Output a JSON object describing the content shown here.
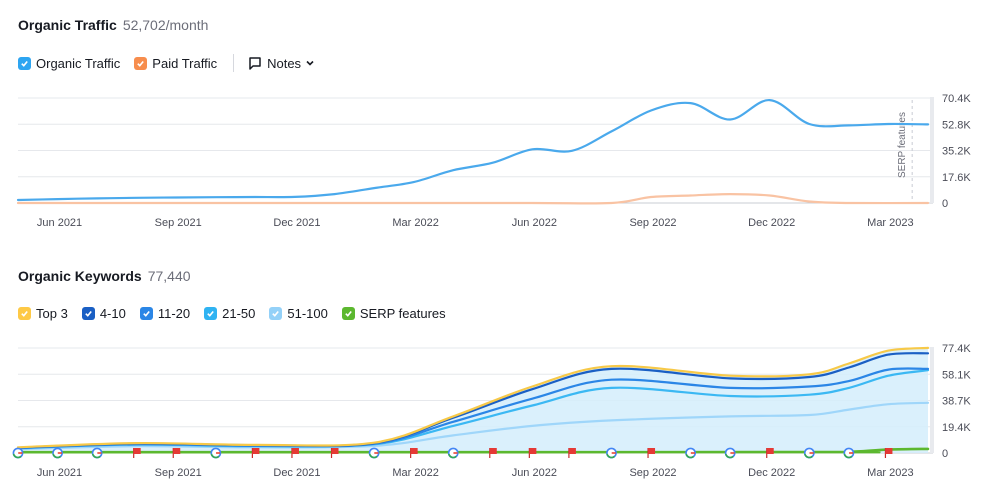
{
  "traffic": {
    "title": "Organic Traffic",
    "value": "52,702/month",
    "legend": [
      {
        "label": "Organic Traffic",
        "color": "#2ea5f1"
      },
      {
        "label": "Paid Traffic",
        "color": "#f78d4d"
      }
    ],
    "notes_label": "Notes"
  },
  "keywords": {
    "title": "Organic Keywords",
    "value": "77,440",
    "legend": [
      {
        "label": "Top 3",
        "color": "#fec946"
      },
      {
        "label": "4-10",
        "color": "#1a5fc4"
      },
      {
        "label": "11-20",
        "color": "#2b86e6"
      },
      {
        "label": "21-50",
        "color": "#2fb3f2"
      },
      {
        "label": "51-100",
        "color": "#94d1f8"
      },
      {
        "label": "SERP features",
        "color": "#5cb82f"
      }
    ]
  },
  "chart_data": [
    {
      "type": "line",
      "title": "Organic Traffic",
      "x_labels": [
        "Jun 2021",
        "Sep 2021",
        "Dec 2021",
        "Mar 2022",
        "Jun 2022",
        "Sep 2022",
        "Dec 2022",
        "Mar 2023"
      ],
      "x_range": [
        "May 2021",
        "May 2023"
      ],
      "y_ticks": [
        "70.4K",
        "52.8K",
        "35.2K",
        "17.6K",
        "0"
      ],
      "ylim": [
        0,
        70400
      ],
      "grid": true,
      "annotation": "SERP features",
      "series": [
        {
          "name": "Organic Traffic",
          "color": "#4aa9ec",
          "points": [
            [
              0,
              2000
            ],
            [
              1,
              2600
            ],
            [
              2,
              3100
            ],
            [
              3,
              3500
            ],
            [
              4,
              3700
            ],
            [
              5,
              3900
            ],
            [
              6,
              4000
            ],
            [
              7,
              4100
            ],
            [
              8,
              6000
            ],
            [
              9,
              10000
            ],
            [
              10,
              14000
            ],
            [
              11,
              22000
            ],
            [
              12,
              27000
            ],
            [
              13,
              36000
            ],
            [
              14,
              35000
            ],
            [
              15,
              48000
            ],
            [
              16,
              62000
            ],
            [
              17,
              67000
            ],
            [
              18,
              56000
            ],
            [
              19,
              69000
            ],
            [
              20,
              53000
            ],
            [
              21,
              52000
            ],
            [
              22,
              53000
            ],
            [
              23,
              52702
            ]
          ]
        },
        {
          "name": "Paid Traffic",
          "color": "#f9c3a3",
          "points": [
            [
              0,
              0
            ],
            [
              5,
              0
            ],
            [
              9,
              0
            ],
            [
              13,
              0
            ],
            [
              15,
              0
            ],
            [
              16,
              4000
            ],
            [
              17,
              5000
            ],
            [
              18,
              6000
            ],
            [
              19,
              5000
            ],
            [
              20,
              1000
            ],
            [
              21,
              0
            ],
            [
              23,
              0
            ]
          ]
        }
      ]
    },
    {
      "type": "area",
      "title": "Organic Keywords",
      "x_labels": [
        "Jun 2021",
        "Sep 2021",
        "Dec 2021",
        "Mar 2022",
        "Jun 2022",
        "Sep 2022",
        "Dec 2022",
        "Mar 2023"
      ],
      "x_range": [
        "May 2021",
        "May 2023"
      ],
      "y_ticks": [
        "77.4K",
        "58.1K",
        "38.7K",
        "19.4K",
        "0"
      ],
      "ylim": [
        0,
        77400
      ],
      "grid": true,
      "series": [
        {
          "name": "Top 3",
          "color": "#f7c948",
          "points": [
            [
              0,
              4200
            ],
            [
              3,
              7300
            ],
            [
              6,
              6000
            ],
            [
              9,
              7600
            ],
            [
              11,
              27000
            ],
            [
              13,
              49000
            ],
            [
              15,
              64000
            ],
            [
              18,
              57000
            ],
            [
              20,
              58000
            ],
            [
              21,
              66000
            ],
            [
              22,
              75500
            ],
            [
              23,
              77440
            ]
          ]
        },
        {
          "name": "4-10",
          "color": "#1a5fc4",
          "points": [
            [
              0,
              4000
            ],
            [
              3,
              7000
            ],
            [
              6,
              5800
            ],
            [
              9,
              7300
            ],
            [
              11,
              26000
            ],
            [
              13,
              47000
            ],
            [
              15,
              62000
            ],
            [
              18,
              55000
            ],
            [
              20,
              56000
            ],
            [
              21,
              63000
            ],
            [
              22,
              72500
            ],
            [
              23,
              73500
            ]
          ]
        },
        {
          "name": "11-20",
          "color": "#2b86e6",
          "points": [
            [
              0,
              3700
            ],
            [
              3,
              6500
            ],
            [
              6,
              5400
            ],
            [
              9,
              6800
            ],
            [
              11,
              23000
            ],
            [
              13,
              40000
            ],
            [
              15,
              54000
            ],
            [
              18,
              48000
            ],
            [
              20,
              49000
            ],
            [
              21,
              53000
            ],
            [
              22,
              61500
            ],
            [
              23,
              62000
            ]
          ]
        },
        {
          "name": "21-50",
          "color": "#3bb8f3",
          "points": [
            [
              0,
              3500
            ],
            [
              3,
              6200
            ],
            [
              6,
              5000
            ],
            [
              9,
              6400
            ],
            [
              11,
              20000
            ],
            [
              13,
              35000
            ],
            [
              15,
              48000
            ],
            [
              18,
              42000
            ],
            [
              20,
              43000
            ],
            [
              21,
              48000
            ],
            [
              22,
              57000
            ],
            [
              23,
              61000
            ]
          ]
        },
        {
          "name": "51-100",
          "color": "#9fd6fa",
          "points": [
            [
              0,
              2800
            ],
            [
              3,
              5000
            ],
            [
              6,
              4200
            ],
            [
              9,
              5200
            ],
            [
              11,
              13000
            ],
            [
              13,
              20000
            ],
            [
              15,
              24000
            ],
            [
              18,
              27000
            ],
            [
              20,
              28000
            ],
            [
              21,
              32000
            ],
            [
              22,
              36000
            ],
            [
              23,
              37000
            ]
          ]
        },
        {
          "name": "SERP features",
          "color": "#5cb82f",
          "points": [
            [
              0,
              600
            ],
            [
              20,
              700
            ],
            [
              21,
              800
            ],
            [
              22,
              2500
            ],
            [
              23,
              3000
            ]
          ]
        }
      ],
      "markers": [
        {
          "type": "google",
          "x": 0
        },
        {
          "type": "google",
          "x": 1
        },
        {
          "type": "google",
          "x": 2
        },
        {
          "type": "flag",
          "x": 3
        },
        {
          "type": "flag",
          "x": 4
        },
        {
          "type": "google",
          "x": 5
        },
        {
          "type": "flag",
          "x": 6
        },
        {
          "type": "flag",
          "x": 7
        },
        {
          "type": "flag",
          "x": 8
        },
        {
          "type": "google",
          "x": 9
        },
        {
          "type": "flag",
          "x": 10
        },
        {
          "type": "google",
          "x": 11
        },
        {
          "type": "flag",
          "x": 12
        },
        {
          "type": "flag",
          "x": 13
        },
        {
          "type": "flag",
          "x": 14
        },
        {
          "type": "google",
          "x": 15
        },
        {
          "type": "flag",
          "x": 16
        },
        {
          "type": "google",
          "x": 17
        },
        {
          "type": "google",
          "x": 18
        },
        {
          "type": "flag",
          "x": 19
        },
        {
          "type": "google",
          "x": 20
        },
        {
          "type": "google",
          "x": 21
        },
        {
          "type": "flag",
          "x": 22
        }
      ]
    }
  ]
}
